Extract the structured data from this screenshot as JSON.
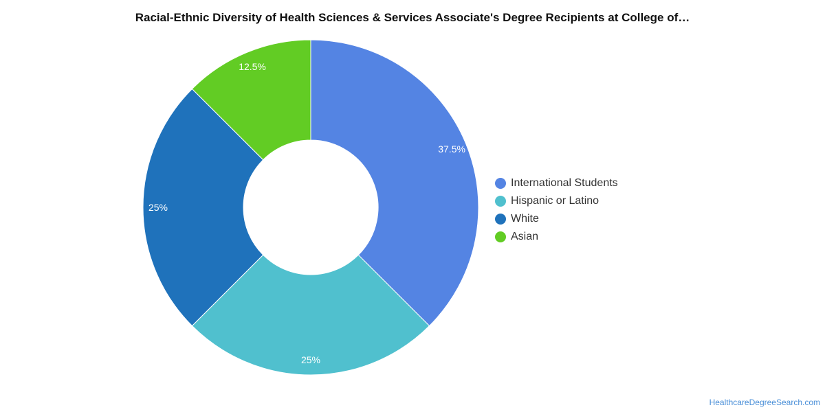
{
  "chart_data": {
    "type": "pie",
    "title": "Racial-Ethnic Diversity of Health Sciences & Services Associate's Degree Recipients at College of…",
    "categories": [
      "International Students",
      "Hispanic or Latino",
      "White",
      "Asian"
    ],
    "values": [
      37.5,
      25,
      25,
      12.5
    ],
    "labels": [
      "37.5%",
      "25%",
      "25%",
      "12.5%"
    ],
    "colors": [
      "#5484e3",
      "#50c0ce",
      "#1f72bb",
      "#62cc24"
    ],
    "donut": true,
    "legend_position": "right"
  },
  "source": "HealthcareDegreeSearch.com"
}
